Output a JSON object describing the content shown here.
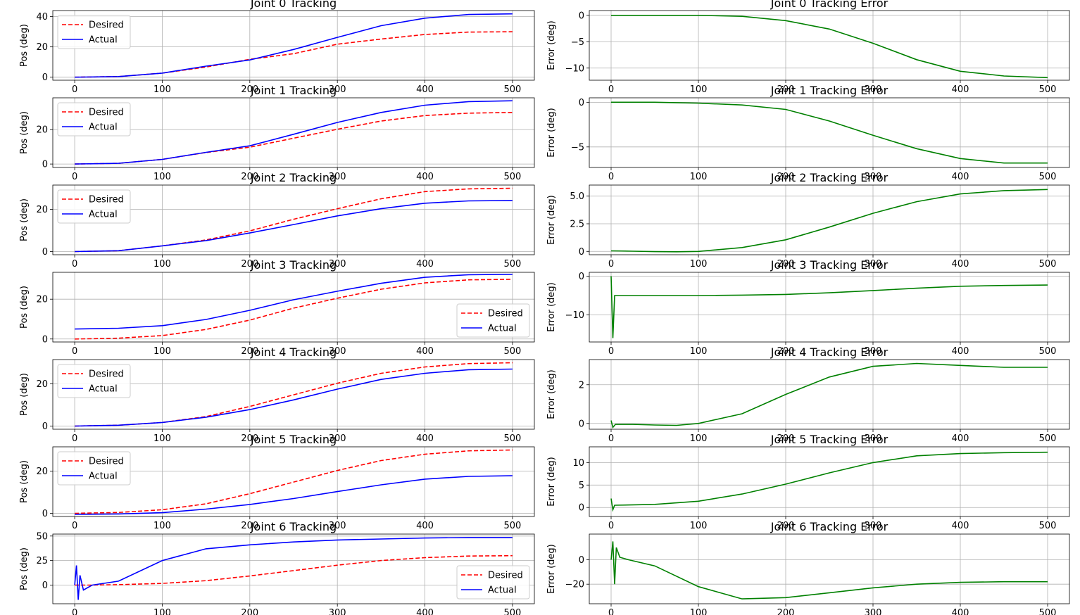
{
  "figure": {
    "background": "#ffffff"
  },
  "colors": {
    "desired": "#ff0000",
    "actual": "#0000ff",
    "error": "#008000",
    "grid": "#b0b0b0",
    "legend_border": "#cccccc"
  },
  "chart_data": [
    {
      "type": "line",
      "title": "Joint 0 Tracking",
      "xlabel": "",
      "ylabel": "Pos (deg)",
      "xlim": [
        -25,
        525
      ],
      "ylim": [
        -2,
        44
      ],
      "xticks": [
        0,
        100,
        200,
        300,
        400,
        500
      ],
      "yticks": [
        0,
        20,
        40
      ],
      "grid": true,
      "legend": "top-left",
      "x": [
        0,
        50,
        100,
        150,
        200,
        250,
        300,
        350,
        400,
        450,
        500
      ],
      "series": [
        {
          "name": "Desired",
          "color": "#ff0000",
          "dash": true,
          "values": [
            0,
            0.4,
            2.7,
            6.7,
            11.8,
            15.5,
            21.8,
            25.2,
            28.2,
            29.8,
            30.0
          ]
        },
        {
          "name": "Actual",
          "color": "#0000ff",
          "dash": false,
          "values": [
            0,
            0.4,
            2.7,
            7.3,
            11.4,
            18.3,
            26.3,
            34.0,
            39.0,
            41.4,
            41.8
          ]
        }
      ]
    },
    {
      "type": "line",
      "title": "Joint 0 Tracking Error",
      "xlabel": "",
      "ylabel": "Error (deg)",
      "xlim": [
        -25,
        525
      ],
      "ylim": [
        -12.3,
        0.9
      ],
      "xticks": [
        0,
        100,
        200,
        300,
        400,
        500
      ],
      "yticks": [
        0,
        -5,
        -10
      ],
      "grid": true,
      "legend": "none",
      "x": [
        0,
        50,
        100,
        150,
        200,
        250,
        300,
        350,
        400,
        450,
        500
      ],
      "series": [
        {
          "color": "#008000",
          "dash": false,
          "values": [
            0,
            0,
            0,
            -0.2,
            -1.0,
            -2.6,
            -5.3,
            -8.4,
            -10.6,
            -11.5,
            -11.8
          ]
        }
      ]
    },
    {
      "type": "line",
      "title": "Joint 1 Tracking",
      "xlabel": "",
      "ylabel": "Pos (deg)",
      "xlim": [
        -25,
        525
      ],
      "ylim": [
        -2,
        38.5
      ],
      "xticks": [
        0,
        100,
        200,
        300,
        400,
        500
      ],
      "yticks": [
        0,
        20
      ],
      "grid": true,
      "legend": "top-left",
      "x": [
        0,
        50,
        100,
        150,
        200,
        250,
        300,
        350,
        400,
        450,
        500
      ],
      "series": [
        {
          "name": "Desired",
          "color": "#ff0000",
          "dash": true,
          "values": [
            0,
            0.4,
            2.7,
            6.7,
            9.8,
            15.0,
            20.2,
            25.0,
            28.2,
            29.6,
            30.0
          ]
        },
        {
          "name": "Actual",
          "color": "#0000ff",
          "dash": false,
          "values": [
            0,
            0.4,
            2.7,
            6.8,
            10.6,
            17.3,
            24.2,
            30.0,
            34.2,
            36.3,
            36.8
          ]
        }
      ]
    },
    {
      "type": "line",
      "title": "Joint 1 Tracking Error",
      "xlabel": "",
      "ylabel": "Error (deg)",
      "xlim": [
        -25,
        525
      ],
      "ylim": [
        -7.3,
        0.5
      ],
      "xticks": [
        0,
        100,
        200,
        300,
        400,
        500
      ],
      "yticks": [
        0,
        -5
      ],
      "grid": true,
      "legend": "none",
      "x": [
        0,
        50,
        100,
        150,
        200,
        250,
        300,
        350,
        400,
        450,
        500
      ],
      "series": [
        {
          "color": "#008000",
          "dash": false,
          "values": [
            0,
            0,
            -0.1,
            -0.3,
            -0.8,
            -2.1,
            -3.7,
            -5.2,
            -6.3,
            -6.8,
            -6.8
          ]
        }
      ]
    },
    {
      "type": "line",
      "title": "Joint 2 Tracking",
      "xlabel": "",
      "ylabel": "Pos (deg)",
      "xlim": [
        -25,
        525
      ],
      "ylim": [
        -1.5,
        31.5
      ],
      "xticks": [
        0,
        100,
        200,
        300,
        400,
        500
      ],
      "yticks": [
        0,
        20
      ],
      "grid": true,
      "legend": "top-left",
      "x": [
        0,
        50,
        100,
        150,
        200,
        250,
        300,
        350,
        400,
        450,
        500
      ],
      "series": [
        {
          "name": "Desired",
          "color": "#ff0000",
          "dash": true,
          "values": [
            0,
            0.4,
            2.7,
            5.5,
            9.8,
            15.3,
            20.3,
            25.0,
            28.4,
            29.7,
            30.0
          ]
        },
        {
          "name": "Actual",
          "color": "#0000ff",
          "dash": false,
          "values": [
            0,
            0.4,
            2.7,
            5.2,
            8.8,
            12.8,
            16.9,
            20.3,
            22.9,
            24.0,
            24.2
          ]
        }
      ]
    },
    {
      "type": "line",
      "title": "Joint 2 Tracking Error",
      "xlabel": "",
      "ylabel": "Error (deg)",
      "xlim": [
        -25,
        525
      ],
      "ylim": [
        -0.3,
        6.0
      ],
      "xticks": [
        0,
        100,
        200,
        300,
        400,
        500
      ],
      "yticks": [
        0.0,
        2.5,
        5.0
      ],
      "grid": true,
      "legend": "none",
      "x": [
        0,
        25,
        50,
        75,
        100,
        150,
        200,
        250,
        300,
        350,
        400,
        450,
        500
      ],
      "series": [
        {
          "color": "#008000",
          "dash": false,
          "values": [
            0.05,
            0.02,
            -0.02,
            -0.03,
            0,
            0.35,
            1.05,
            2.2,
            3.45,
            4.5,
            5.2,
            5.5,
            5.6
          ]
        }
      ]
    },
    {
      "type": "line",
      "title": "Joint 3 Tracking",
      "xlabel": "",
      "ylabel": "Pos (deg)",
      "xlim": [
        -25,
        525
      ],
      "ylim": [
        -1.5,
        33.5
      ],
      "xticks": [
        0,
        100,
        200,
        300,
        400,
        500
      ],
      "yticks": [
        0,
        20
      ],
      "grid": true,
      "legend": "bottom-right",
      "x": [
        0,
        50,
        100,
        150,
        200,
        250,
        300,
        350,
        400,
        450,
        500
      ],
      "series": [
        {
          "name": "Desired",
          "color": "#ff0000",
          "dash": true,
          "values": [
            0,
            0.4,
            1.7,
            4.8,
            9.5,
            15.5,
            20.5,
            25.0,
            28.2,
            29.7,
            30.0
          ]
        },
        {
          "name": "Actual",
          "color": "#0000ff",
          "dash": false,
          "values": [
            5.0,
            5.4,
            6.7,
            9.8,
            14.4,
            19.7,
            24.0,
            28.0,
            31.0,
            32.3,
            32.5
          ]
        }
      ]
    },
    {
      "type": "line",
      "title": "Joint 3 Tracking Error",
      "xlabel": "",
      "ylabel": "Error (deg)",
      "xlim": [
        -25,
        525
      ],
      "ylim": [
        -17,
        1
      ],
      "xticks": [
        0,
        100,
        200,
        300,
        400,
        500
      ],
      "yticks": [
        0,
        -10
      ],
      "grid": true,
      "legend": "none",
      "x": [
        0,
        2,
        4,
        50,
        100,
        150,
        200,
        250,
        300,
        350,
        400,
        450,
        500
      ],
      "series": [
        {
          "color": "#008000",
          "dash": false,
          "values": [
            0,
            -16,
            -5,
            -5,
            -5,
            -4.9,
            -4.7,
            -4.3,
            -3.7,
            -3.1,
            -2.6,
            -2.4,
            -2.3
          ]
        }
      ]
    },
    {
      "type": "line",
      "title": "Joint 4 Tracking",
      "xlabel": "",
      "ylabel": "Pos (deg)",
      "xlim": [
        -25,
        525
      ],
      "ylim": [
        -1.5,
        31.5
      ],
      "xticks": [
        0,
        100,
        200,
        300,
        400,
        500
      ],
      "yticks": [
        0,
        20
      ],
      "grid": true,
      "legend": "top-left",
      "x": [
        0,
        50,
        100,
        150,
        200,
        250,
        300,
        350,
        400,
        450,
        500
      ],
      "series": [
        {
          "name": "Desired",
          "color": "#ff0000",
          "dash": true,
          "values": [
            0,
            0.4,
            1.7,
            4.5,
            9.3,
            14.8,
            20.3,
            25.0,
            28.0,
            29.6,
            30.0
          ]
        },
        {
          "name": "Actual",
          "color": "#0000ff",
          "dash": false,
          "values": [
            0,
            0.4,
            1.7,
            4.2,
            7.8,
            12.4,
            17.5,
            22.1,
            25.0,
            26.7,
            27.0
          ]
        }
      ]
    },
    {
      "type": "line",
      "title": "Joint 4 Tracking Error",
      "xlabel": "",
      "ylabel": "Error (deg)",
      "xlim": [
        -25,
        525
      ],
      "ylim": [
        -0.3,
        3.3
      ],
      "xticks": [
        0,
        100,
        200,
        300,
        400,
        500
      ],
      "yticks": [
        0,
        2
      ],
      "grid": true,
      "legend": "none",
      "x": [
        0,
        2,
        5,
        25,
        50,
        75,
        100,
        150,
        200,
        250,
        300,
        350,
        400,
        450,
        500
      ],
      "series": [
        {
          "color": "#008000",
          "dash": false,
          "values": [
            0.15,
            -0.2,
            -0.05,
            -0.05,
            -0.08,
            -0.1,
            0,
            0.5,
            1.5,
            2.4,
            2.95,
            3.1,
            3.0,
            2.9,
            2.9
          ]
        }
      ]
    },
    {
      "type": "line",
      "title": "Joint 5 Tracking",
      "xlabel": "",
      "ylabel": "Pos (deg)",
      "xlim": [
        -25,
        525
      ],
      "ylim": [
        -1.5,
        31.5
      ],
      "xticks": [
        0,
        100,
        200,
        300,
        400,
        500
      ],
      "yticks": [
        0,
        20
      ],
      "grid": true,
      "legend": "top-left",
      "x": [
        0,
        50,
        100,
        150,
        200,
        250,
        300,
        350,
        400,
        450,
        500
      ],
      "series": [
        {
          "name": "Desired",
          "color": "#ff0000",
          "dash": true,
          "values": [
            0,
            0.4,
            1.7,
            4.5,
            9.3,
            14.8,
            20.3,
            25.0,
            28.0,
            29.6,
            30.0
          ]
        },
        {
          "name": "Actual",
          "color": "#0000ff",
          "dash": false,
          "values": [
            -0.5,
            -0.3,
            0.3,
            2.0,
            4.2,
            7.0,
            10.3,
            13.5,
            16.2,
            17.5,
            17.8
          ]
        }
      ]
    },
    {
      "type": "line",
      "title": "Joint 5 Tracking Error",
      "xlabel": "",
      "ylabel": "Error (deg)",
      "xlim": [
        -25,
        525
      ],
      "ylim": [
        -2,
        13.5
      ],
      "xticks": [
        0,
        100,
        200,
        300,
        400,
        500
      ],
      "yticks": [
        0,
        5,
        10
      ],
      "grid": true,
      "legend": "none",
      "x": [
        0,
        2,
        4,
        50,
        100,
        150,
        200,
        250,
        300,
        350,
        400,
        450,
        500
      ],
      "series": [
        {
          "color": "#008000",
          "dash": false,
          "values": [
            2,
            -0.5,
            0.5,
            0.7,
            1.4,
            3.0,
            5.2,
            7.7,
            10.0,
            11.5,
            12.0,
            12.2,
            12.3
          ]
        }
      ]
    },
    {
      "type": "line",
      "title": "Joint 6 Tracking",
      "xlabel": "",
      "ylabel": "Pos (deg)",
      "xlim": [
        -25,
        525
      ],
      "ylim": [
        -19,
        52
      ],
      "xticks": [
        0,
        100,
        200,
        300,
        400,
        500
      ],
      "yticks": [
        0,
        25,
        50
      ],
      "grid": true,
      "legend": "bottom-right",
      "x": [
        0,
        2,
        4,
        6,
        10,
        20,
        50,
        100,
        150,
        200,
        250,
        300,
        350,
        400,
        450,
        500
      ],
      "series": [
        {
          "name": "Desired",
          "color": "#ff0000",
          "dash": true,
          "values": [
            0,
            0,
            0,
            0,
            0,
            0,
            0.4,
            1.7,
            4.5,
            9.3,
            14.8,
            20.3,
            25.0,
            28.0,
            29.6,
            30.0
          ]
        },
        {
          "name": "Actual",
          "color": "#0000ff",
          "dash": false,
          "values": [
            0,
            20,
            -15,
            10,
            -5,
            0,
            4,
            25,
            37,
            41,
            44,
            46,
            47,
            48,
            48.5,
            48.5
          ]
        }
      ]
    },
    {
      "type": "line",
      "title": "Joint 6 Tracking Error",
      "xlabel": "",
      "ylabel": "Error (deg)",
      "xlim": [
        -25,
        525
      ],
      "ylim": [
        -36,
        21
      ],
      "xticks": [
        0,
        100,
        200,
        300,
        400,
        500
      ],
      "yticks": [
        0,
        -20
      ],
      "grid": true,
      "legend": "none",
      "x": [
        0,
        2,
        4,
        6,
        10,
        20,
        50,
        100,
        150,
        200,
        250,
        300,
        350,
        400,
        450,
        500
      ],
      "series": [
        {
          "color": "#008000",
          "dash": false,
          "values": [
            0,
            15,
            -20,
            10,
            2,
            0,
            -5,
            -22,
            -32,
            -31,
            -27,
            -23,
            -20,
            -18.5,
            -18,
            -18
          ]
        }
      ]
    }
  ]
}
